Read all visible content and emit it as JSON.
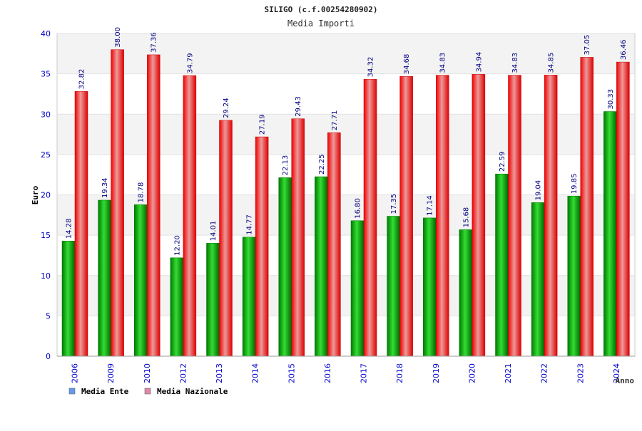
{
  "chart_data": {
    "type": "bar",
    "title": "SILIGO (c.f.00254280902)",
    "subtitle": "Media Importi",
    "xlabel": "Anno",
    "ylabel": "Euro",
    "ylim": [
      0,
      40
    ],
    "yticks": [
      0,
      5,
      10,
      15,
      20,
      25,
      30,
      35,
      40
    ],
    "grid": true,
    "legend_position": "bottom-left",
    "categories": [
      "2006",
      "2009",
      "2010",
      "2012",
      "2013",
      "2014",
      "2015",
      "2016",
      "2017",
      "2018",
      "2019",
      "2020",
      "2021",
      "2022",
      "2023",
      "2024"
    ],
    "series": [
      {
        "name": "Media Ente",
        "color": "#00aa00",
        "legend_color": "#6699ee",
        "values": [
          14.28,
          19.34,
          18.78,
          12.2,
          14.01,
          14.77,
          22.13,
          22.25,
          16.8,
          17.35,
          17.14,
          15.68,
          22.59,
          19.04,
          19.85,
          30.33
        ],
        "labels": [
          "14.28",
          "19.34",
          "18.78",
          "12.20",
          "14.01",
          "14.77",
          "22.13",
          "22.25",
          "16.80",
          "17.35",
          "17.14",
          "15.68",
          "22.59",
          "19.04",
          "19.85",
          "30.33"
        ]
      },
      {
        "name": "Media Nazionale",
        "color": "#ee0000",
        "legend_color": "#dd88aa",
        "values": [
          32.82,
          38.0,
          37.36,
          34.79,
          29.24,
          27.19,
          29.43,
          27.71,
          34.32,
          34.68,
          34.83,
          34.94,
          34.83,
          34.85,
          37.05,
          36.46
        ],
        "labels": [
          "32.82",
          "38.00",
          "37.36",
          "34.79",
          "29.24",
          "27.19",
          "29.43",
          "27.71",
          "34.32",
          "34.68",
          "34.83",
          "34.94",
          "34.83",
          "34.85",
          "37.05",
          "36.46"
        ]
      }
    ]
  }
}
